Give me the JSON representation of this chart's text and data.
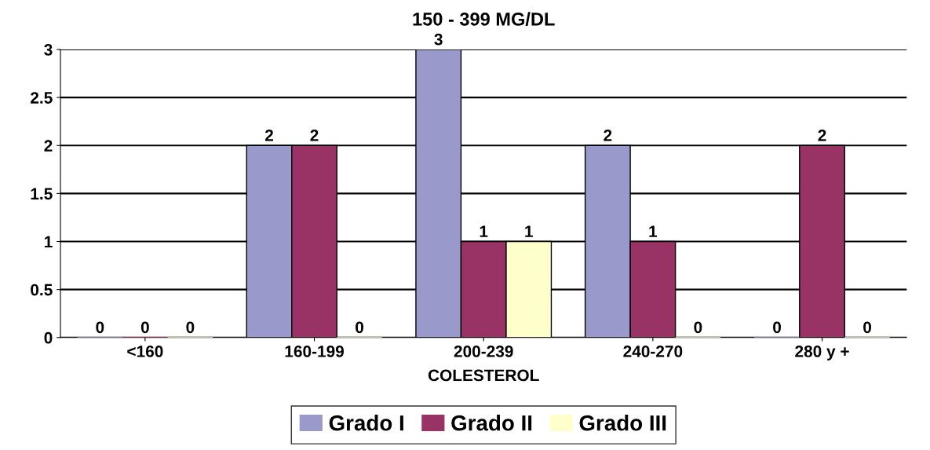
{
  "chart_data": {
    "type": "bar",
    "title": "150 - 399 MG/DL",
    "xlabel": "COLESTEROL",
    "categories": [
      "<160",
      "160-199",
      "200-239",
      "240-270",
      "280 y +"
    ],
    "series": [
      {
        "name": "Grado I",
        "color": "#9999cc",
        "values": [
          0,
          2,
          3,
          2,
          0
        ]
      },
      {
        "name": "Grado II",
        "color": "#993366",
        "values": [
          0,
          2,
          1,
          1,
          2
        ]
      },
      {
        "name": "Grado III",
        "color": "#ffffcc",
        "values": [
          0,
          0,
          1,
          0,
          0
        ]
      }
    ],
    "ylim": [
      0,
      3
    ],
    "yticks": [
      0,
      0.5,
      1,
      1.5,
      2,
      2.5,
      3
    ],
    "grid": "y",
    "legend": "bottom",
    "data_labels": true
  }
}
